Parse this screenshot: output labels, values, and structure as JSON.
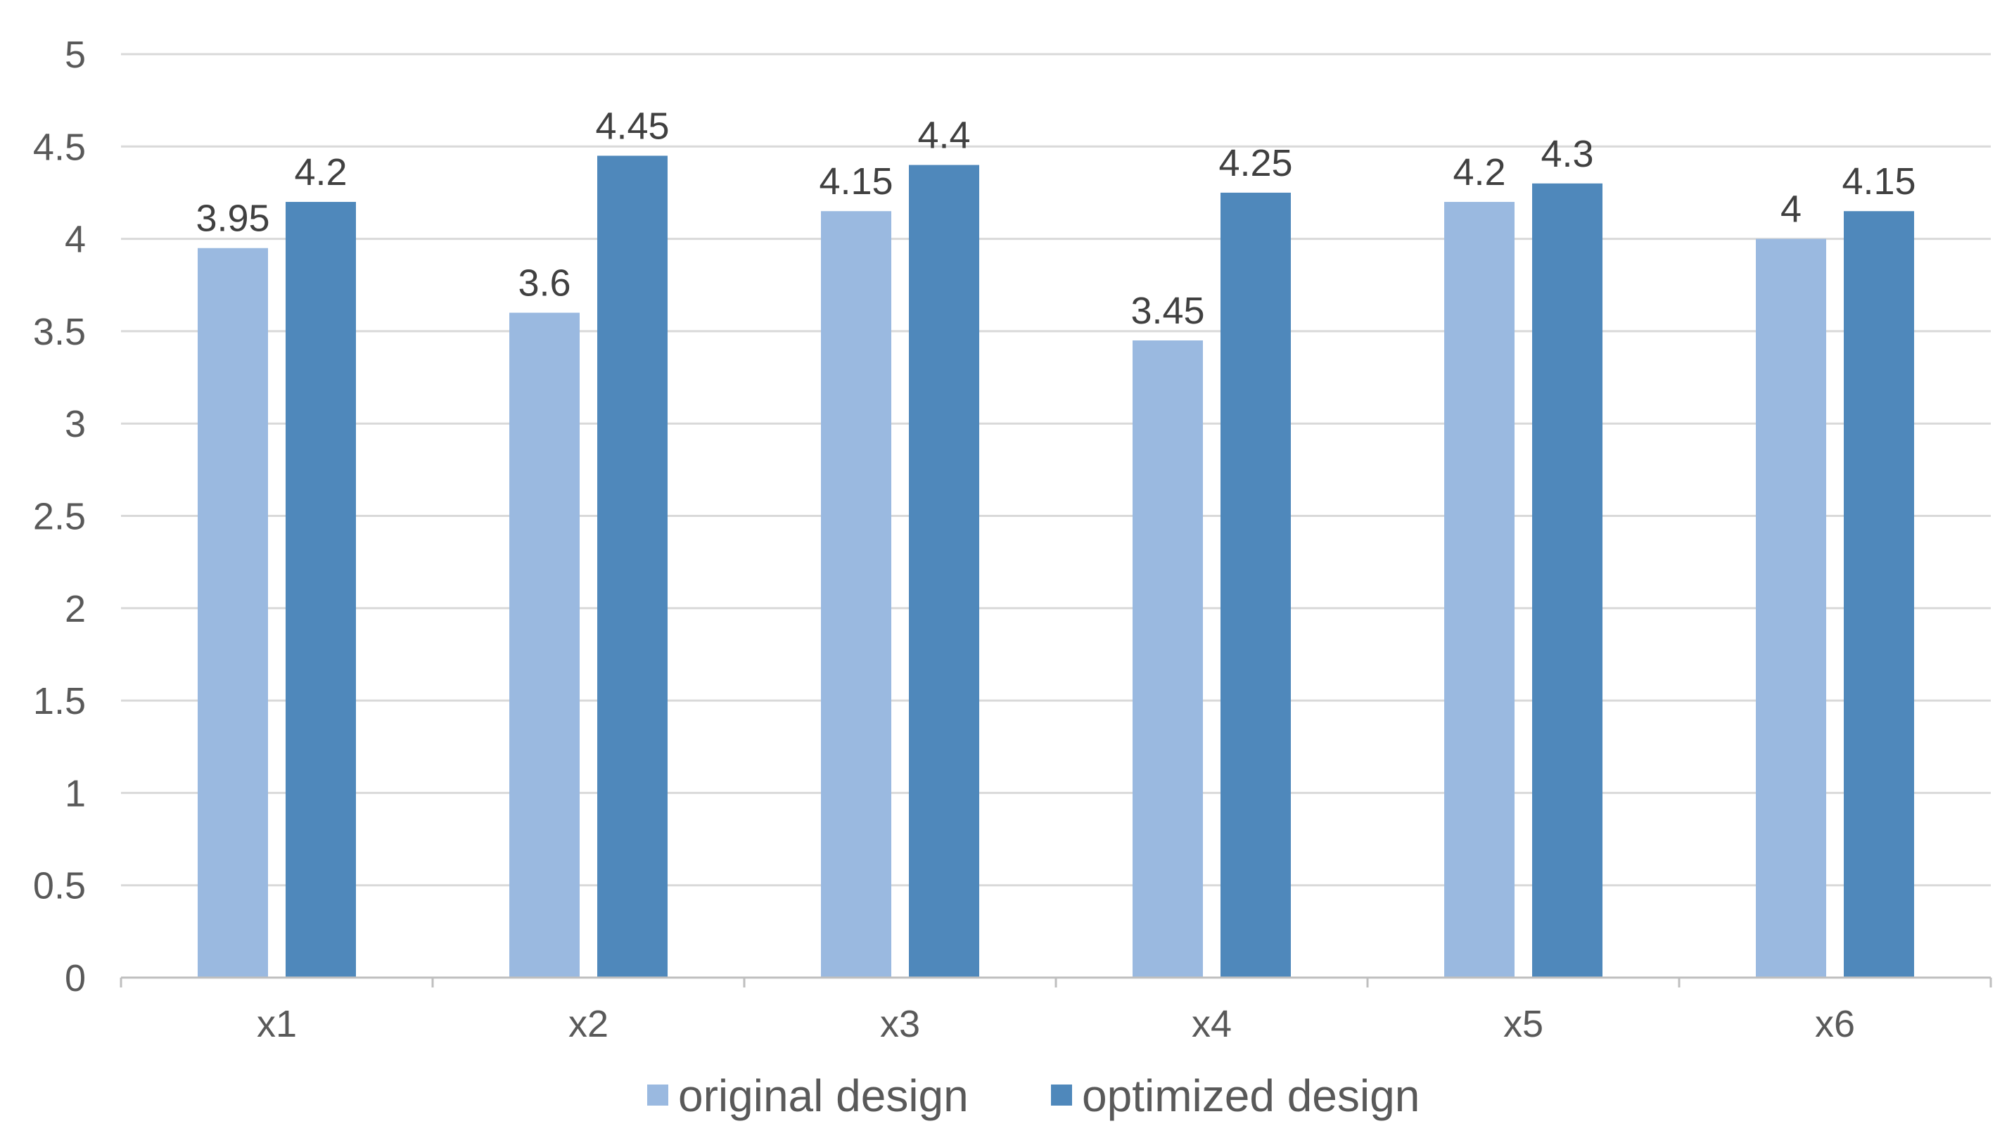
{
  "chart_data": {
    "type": "bar",
    "title": "",
    "xlabel": "",
    "ylabel": "",
    "categories": [
      "x1",
      "x2",
      "x3",
      "x4",
      "x5",
      "x6"
    ],
    "series": [
      {
        "name": "original design",
        "values": [
          3.95,
          3.6,
          4.15,
          3.45,
          4.2,
          4.0
        ],
        "labels": [
          "3.95",
          "3.6",
          "4.15",
          "3.45",
          "4.2",
          "4"
        ],
        "color": "#9ab9e0"
      },
      {
        "name": "optimized design",
        "values": [
          4.2,
          4.45,
          4.4,
          4.25,
          4.3,
          4.15
        ],
        "labels": [
          "4.2",
          "4.45",
          "4.4",
          "4.25",
          "4.3",
          "4.15"
        ],
        "color": "#4f88bb"
      }
    ],
    "ylim": [
      0,
      5
    ],
    "yticks": [
      0,
      0.5,
      1,
      1.5,
      2,
      2.5,
      3,
      3.5,
      4,
      4.5,
      5
    ],
    "ytick_labels": [
      "0",
      "0.5",
      "1",
      "1.5",
      "2",
      "2.5",
      "3",
      "3.5",
      "4",
      "4.5",
      "5"
    ],
    "grid": true,
    "legend": "bottom",
    "colors": {
      "grid": "#d9d9d9",
      "axis": "#bfbfbf",
      "text": "#595959"
    }
  }
}
